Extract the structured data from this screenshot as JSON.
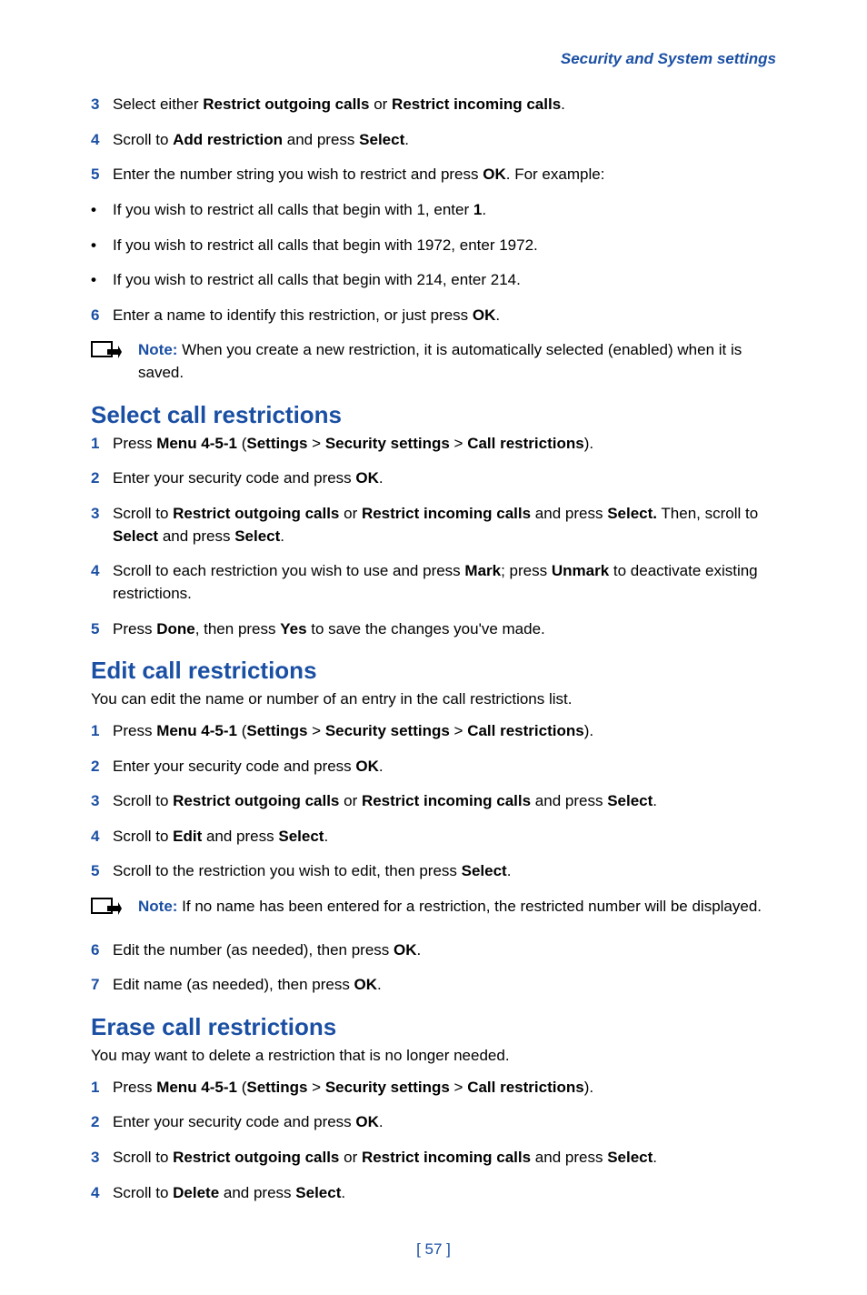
{
  "colors": {
    "accent": "#1a4fa3",
    "text": "#000000",
    "background": "#ffffff"
  },
  "typography": {
    "body_size_pt": 13,
    "heading_size_pt": 20,
    "font_family": "sans-serif"
  },
  "header": {
    "running_title": "Security and System settings"
  },
  "page_number": "[ 57 ]",
  "top_items": [
    {
      "num": "3",
      "parts": [
        "Select either ",
        "Restrict outgoing calls",
        " or ",
        "Restrict incoming calls",
        "."
      ]
    },
    {
      "num": "4",
      "parts": [
        "Scroll to ",
        "Add restriction",
        " and press ",
        "Select",
        "."
      ]
    },
    {
      "num": "5",
      "parts": [
        "Enter the number string you wish to restrict and press ",
        "OK",
        ". For example:"
      ]
    }
  ],
  "top_bullets": [
    {
      "parts": [
        "If you wish to restrict all calls that begin with 1, enter ",
        "1",
        "."
      ]
    },
    {
      "plain": "If you wish to restrict all calls that begin with 1972, enter 1972."
    },
    {
      "plain": "If you wish to restrict all calls that begin with 214, enter 214."
    }
  ],
  "top_item6": {
    "num": "6",
    "parts": [
      "Enter a name to identify this restriction, or just press ",
      "OK",
      "."
    ]
  },
  "note1": {
    "label": "Note:",
    "text": " When you create a new restriction, it is automatically selected (enabled) when it is saved."
  },
  "section_select": {
    "title": "Select call restrictions",
    "items": [
      {
        "num": "1",
        "parts": [
          "Press ",
          "Menu 4-5-1",
          " (",
          "Settings",
          " > ",
          "Security settings",
          " > ",
          "Call restrictions",
          ")."
        ]
      },
      {
        "num": "2",
        "parts": [
          "Enter your security code and press ",
          "OK",
          "."
        ]
      },
      {
        "num": "3",
        "parts": [
          "Scroll to ",
          "Restrict outgoing calls",
          " or ",
          "Restrict incoming calls",
          " and press ",
          "Select.",
          " Then, scroll to ",
          "Select",
          " and press ",
          "Select",
          "."
        ]
      },
      {
        "num": "4",
        "parts": [
          "Scroll to each restriction you wish to use and press ",
          "Mark",
          "; press ",
          "Unmark",
          " to deactivate existing restrictions."
        ]
      },
      {
        "num": "5",
        "parts": [
          "Press ",
          "Done",
          ", then press ",
          "Yes",
          " to save the changes you've made."
        ]
      }
    ]
  },
  "section_edit": {
    "title": "Edit call restrictions",
    "intro": "You can edit the name or number of an entry in the call restrictions list.",
    "items_a": [
      {
        "num": "1",
        "parts": [
          "Press ",
          "Menu 4-5-1",
          " (",
          "Settings",
          " > ",
          "Security settings",
          " > ",
          "Call restrictions",
          ")."
        ]
      },
      {
        "num": "2",
        "parts": [
          "Enter your security code and press ",
          "OK",
          "."
        ]
      },
      {
        "num": "3",
        "parts": [
          "Scroll to ",
          "Restrict outgoing calls",
          " or ",
          "Restrict incoming calls",
          " and press ",
          "Select",
          "."
        ]
      },
      {
        "num": "4",
        "parts": [
          "Scroll to ",
          "Edit",
          " and press ",
          "Select",
          "."
        ]
      },
      {
        "num": "5",
        "parts": [
          "Scroll to the restriction you wish to edit, then press ",
          "Select",
          "."
        ]
      }
    ],
    "note": {
      "label": "Note:",
      "text": " If no name has been entered for a restriction, the restricted number will be displayed."
    },
    "items_b": [
      {
        "num": "6",
        "parts": [
          "Edit the number (as needed), then press ",
          "OK",
          "."
        ]
      },
      {
        "num": "7",
        "parts": [
          "Edit name (as needed), then press ",
          "OK",
          "."
        ]
      }
    ]
  },
  "section_erase": {
    "title": "Erase call restrictions",
    "intro": "You may want to delete a restriction that is no longer needed.",
    "items": [
      {
        "num": "1",
        "parts": [
          "Press ",
          "Menu 4-5-1",
          " (",
          "Settings",
          " > ",
          "Security settings",
          " > ",
          "Call restrictions",
          ")."
        ]
      },
      {
        "num": "2",
        "parts": [
          "Enter your security code and press ",
          "OK",
          "."
        ]
      },
      {
        "num": "3",
        "parts": [
          "Scroll to ",
          "Restrict outgoing calls",
          " or ",
          "Restrict incoming calls",
          " and press ",
          "Select",
          "."
        ]
      },
      {
        "num": "4",
        "parts": [
          "Scroll to ",
          "Delete",
          " and press ",
          "Select",
          "."
        ]
      }
    ]
  }
}
